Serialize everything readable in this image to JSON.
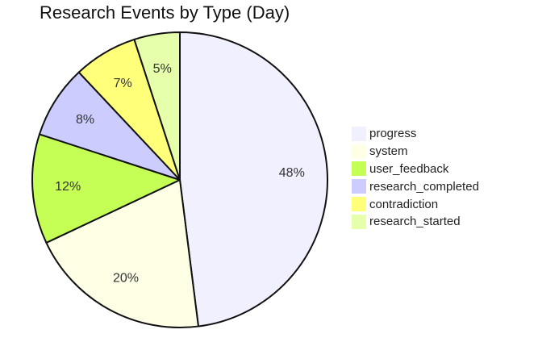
{
  "chart_data": {
    "type": "pie",
    "title": "Research Events by Type (Day)",
    "slices": [
      {
        "label": "progress",
        "value": 48,
        "display": "48%",
        "color": "#f0f0ff"
      },
      {
        "label": "system",
        "value": 20,
        "display": "20%",
        "color": "#ffffe5"
      },
      {
        "label": "user_feedback",
        "value": 12,
        "display": "12%",
        "color": "#c5ff56"
      },
      {
        "label": "research_completed",
        "value": 8,
        "display": "8%",
        "color": "#ccccff"
      },
      {
        "label": "contradiction",
        "value": 7,
        "display": "7%",
        "color": "#ffff7a"
      },
      {
        "label": "research_started",
        "value": 5,
        "display": "5%",
        "color": "#e5ffaa"
      }
    ],
    "legend_placement": "right",
    "start_angle_deg": 0,
    "direction": "clockwise"
  }
}
